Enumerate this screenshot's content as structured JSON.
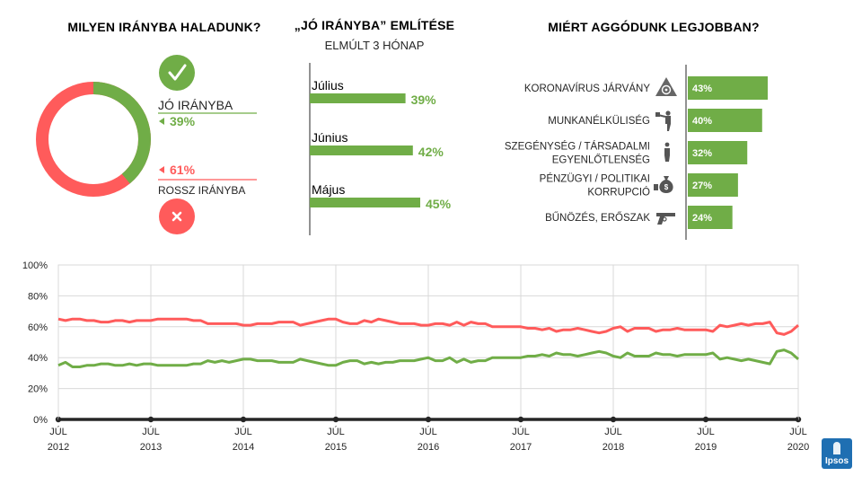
{
  "colors": {
    "green": "#70AD47",
    "red": "#FF5B5B",
    "axis": "#262626",
    "grid": "#D9D9D9"
  },
  "donut": {
    "title": "MILYEN IRÁNYBA HALADUNK?",
    "good_label": "JÓ IRÁNYBA",
    "good_value": "39%",
    "bad_value": "61%",
    "bad_label": "ROSSZ IRÁNYBA",
    "check_icon": "check-icon",
    "cross_icon": "cross-icon"
  },
  "months": {
    "title": "„JÓ IRÁNYBA” EMLÍTÉSE",
    "subtitle": "ELMÚLT 3 HÓNAP"
  },
  "worries": {
    "title": "MIÉRT AGGÓDUNK LEGJOBBAN?"
  },
  "brand": "Ipsos",
  "chart_data": [
    {
      "type": "pie",
      "categories": [
        "JÓ IRÁNYBA",
        "ROSSZ IRÁNYBA"
      ],
      "values": [
        39,
        61
      ],
      "style": "donut"
    },
    {
      "type": "bar",
      "orientation": "horizontal",
      "title": "„JÓ IRÁNYBA” EMLÍTÉSE",
      "subtitle": "ELMÚLT 3 HÓNAP",
      "categories": [
        "Július",
        "Június",
        "Május"
      ],
      "values": [
        39,
        42,
        45
      ],
      "labels": [
        "39%",
        "42%",
        "45%"
      ],
      "xlim": [
        0,
        50
      ]
    },
    {
      "type": "bar",
      "orientation": "horizontal",
      "title": "MIÉRT AGGÓDUNK LEGJOBBAN?",
      "categories": [
        [
          "KORONAVÍRUS JÁRVÁNY"
        ],
        [
          "MUNKANÉLKÜLISÉG"
        ],
        [
          "SZEGÉNYSÉG / TÁRSADALMI",
          "EGYENLŐTLENSÉG"
        ],
        [
          "PÉNZÜGYI / POLITIKAI",
          "KORRUPCIÓ"
        ],
        [
          "BŰNÖZÉS, ERŐSZAK"
        ]
      ],
      "icons": [
        "biohazard-icon",
        "unemployed-person-icon",
        "person-icon",
        "money-bag-icon",
        "gun-icon"
      ],
      "values": [
        43,
        40,
        32,
        27,
        24
      ],
      "labels": [
        "43%",
        "40%",
        "32%",
        "27%",
        "24%"
      ],
      "xlim": [
        0,
        50
      ]
    },
    {
      "type": "line",
      "ylim": [
        0,
        100
      ],
      "yticks": [
        "0%",
        "20%",
        "40%",
        "60%",
        "80%",
        "100%"
      ],
      "grid": true,
      "x_range": [
        "2012-07",
        "2020-07"
      ],
      "xticks": [
        [
          "JÚL",
          "2012"
        ],
        [
          "JÚL",
          "2013"
        ],
        [
          "JÚL",
          "2014"
        ],
        [
          "JÚL",
          "2015"
        ],
        [
          "JÚL",
          "2016"
        ],
        [
          "JÚL",
          "2017"
        ],
        [
          "JÚL",
          "2018"
        ],
        [
          "JÚL",
          "2019"
        ],
        [
          "JÚL",
          "2020"
        ]
      ],
      "series": [
        {
          "key": "good",
          "color": "#70AD47",
          "values": [
            35,
            37,
            34,
            34,
            35,
            35,
            36,
            36,
            35,
            35,
            36,
            35,
            36,
            36,
            35,
            35,
            35,
            35,
            35,
            36,
            36,
            38,
            37,
            38,
            37,
            38,
            39,
            39,
            38,
            38,
            38,
            37,
            37,
            37,
            39,
            38,
            37,
            36,
            35,
            35,
            37,
            38,
            38,
            36,
            37,
            36,
            37,
            37,
            38,
            38,
            38,
            39,
            40,
            38,
            38,
            40,
            37,
            39,
            37,
            38,
            38,
            40,
            40,
            40,
            40,
            40,
            41,
            41,
            42,
            41,
            43,
            42,
            42,
            41,
            42,
            43,
            44,
            43,
            41,
            40,
            43,
            41,
            41,
            41,
            43,
            42,
            42,
            41,
            42,
            42,
            42,
            42,
            43,
            39,
            40,
            39,
            38,
            39,
            38,
            37,
            36,
            44,
            45,
            43,
            39
          ]
        },
        {
          "key": "bad",
          "color": "#FF5B5B",
          "values": [
            65,
            64,
            65,
            65,
            64,
            64,
            63,
            63,
            64,
            64,
            63,
            64,
            64,
            64,
            65,
            65,
            65,
            65,
            65,
            64,
            64,
            62,
            62,
            62,
            62,
            62,
            61,
            61,
            62,
            62,
            62,
            63,
            63,
            63,
            61,
            62,
            63,
            64,
            65,
            65,
            63,
            62,
            62,
            64,
            63,
            65,
            64,
            63,
            62,
            62,
            62,
            61,
            61,
            62,
            62,
            61,
            63,
            61,
            63,
            62,
            62,
            60,
            60,
            60,
            60,
            60,
            59,
            59,
            58,
            59,
            57,
            58,
            58,
            59,
            58,
            57,
            56,
            57,
            59,
            60,
            57,
            59,
            59,
            59,
            57,
            58,
            58,
            59,
            58,
            58,
            58,
            58,
            57,
            61,
            60,
            61,
            62,
            61,
            62,
            62,
            63,
            56,
            55,
            57,
            61
          ]
        }
      ]
    }
  ]
}
